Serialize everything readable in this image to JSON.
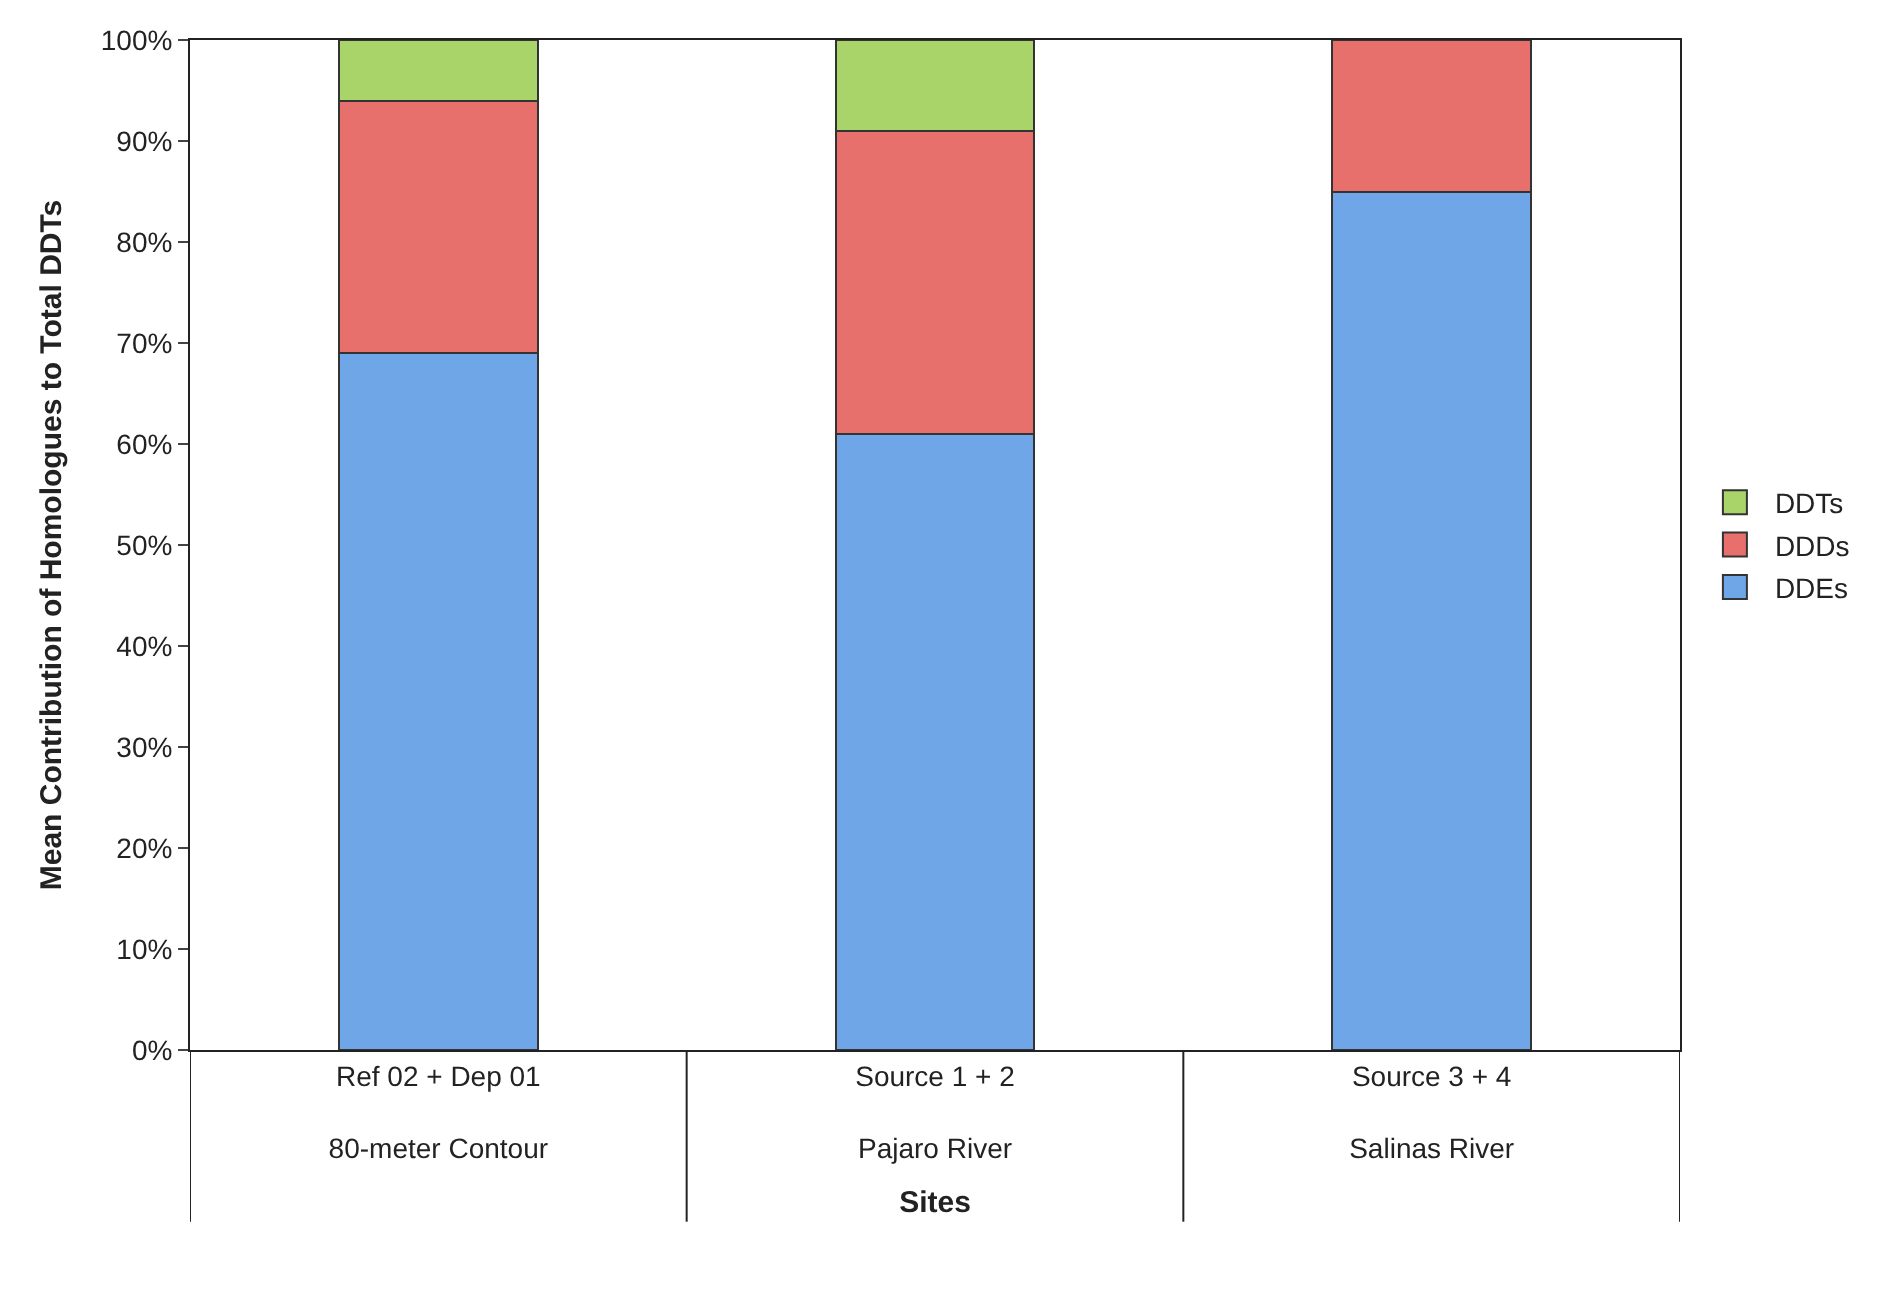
{
  "chart_data": {
    "type": "bar",
    "stacked": true,
    "xlabel": "Sites",
    "ylabel": "Mean Contribution of Homologues to Total DDTs",
    "categories": [
      "Ref 02 + Dep 01\n80-meter Contour",
      "Source 1 + 2\nPajaro River",
      "Source 3 + 4\nSalinas River"
    ],
    "series": [
      {
        "name": "DDEs",
        "color": "#6fa6e8",
        "values": [
          69,
          61,
          85
        ]
      },
      {
        "name": "DDDs",
        "color": "#e8706c",
        "values": [
          25,
          30,
          15
        ]
      },
      {
        "name": "DDTs",
        "color": "#a8d46a",
        "values": [
          6,
          9,
          null
        ]
      }
    ],
    "ylim": [
      0,
      100
    ],
    "yticks": [
      {
        "value": 0,
        "label": "0%"
      },
      {
        "value": 10,
        "label": "10%"
      },
      {
        "value": 20,
        "label": "20%"
      },
      {
        "value": 30,
        "label": "30%"
      },
      {
        "value": 40,
        "label": "40%"
      },
      {
        "value": 50,
        "label": "50%"
      },
      {
        "value": 60,
        "label": "60%"
      },
      {
        "value": 70,
        "label": "70%"
      },
      {
        "value": 80,
        "label": "80%"
      },
      {
        "value": 90,
        "label": "90%"
      },
      {
        "value": 100,
        "label": "100%"
      }
    ],
    "legend": "right"
  }
}
